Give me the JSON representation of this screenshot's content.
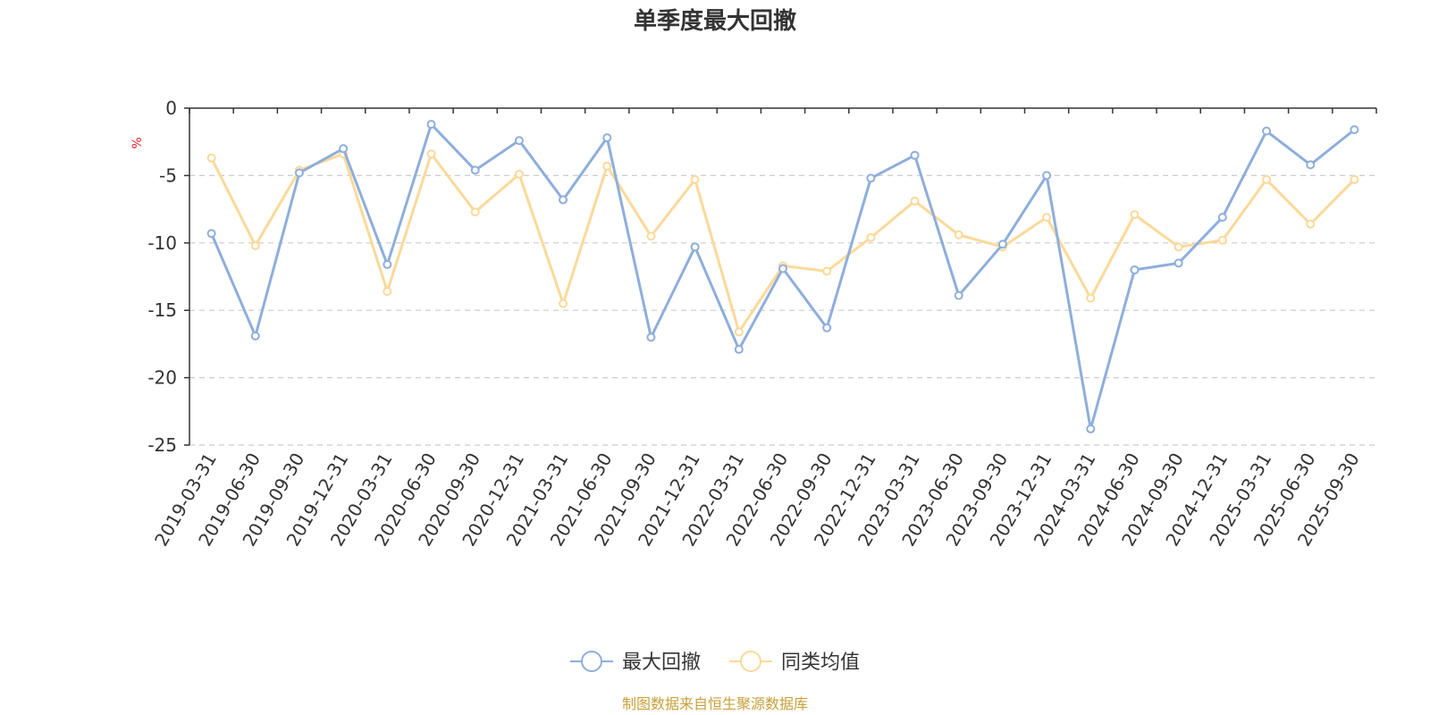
{
  "chart_data": {
    "type": "line",
    "title": "单季度最大回撤",
    "ylabel": "%",
    "ylabel_color": "#e02020",
    "ylim": [
      -25,
      0
    ],
    "yticks": [
      "0",
      "-5",
      "-10",
      "-15",
      "-20",
      "-25"
    ],
    "ytick_values": [
      0,
      -5,
      -10,
      -15,
      -20,
      -25
    ],
    "grid": true,
    "legend_position": "bottom-center",
    "categories": [
      "2019-03-31",
      "2019-06-30",
      "2019-09-30",
      "2019-12-31",
      "2020-03-31",
      "2020-06-30",
      "2020-09-30",
      "2020-12-31",
      "2021-03-31",
      "2021-06-30",
      "2021-09-30",
      "2021-12-31",
      "2022-03-31",
      "2022-06-30",
      "2022-09-30",
      "2022-12-31",
      "2023-03-31",
      "2023-06-30",
      "2023-09-30",
      "2023-12-31",
      "2024-03-31",
      "2024-06-30",
      "2024-09-30",
      "2024-12-31",
      "2025-03-31",
      "2025-06-30",
      "2025-09-30"
    ],
    "series": [
      {
        "name": "最大回撤",
        "color": "#8eaedb",
        "values": [
          -9.3,
          -16.9,
          -4.8,
          -3.0,
          -11.6,
          -1.2,
          -4.6,
          -2.4,
          -6.8,
          -2.2,
          -17.0,
          -10.3,
          -17.9,
          -11.9,
          -16.3,
          -5.2,
          -3.5,
          -13.9,
          -10.1,
          -5.0,
          -23.8,
          -12.0,
          -11.5,
          -8.1,
          -1.7,
          -4.2,
          -1.6
        ]
      },
      {
        "name": "同类均值",
        "color": "#fbd999",
        "values": [
          -3.7,
          -10.2,
          -4.6,
          -3.4,
          -13.6,
          -3.4,
          -7.7,
          -4.9,
          -14.5,
          -4.3,
          -9.5,
          -5.3,
          -16.6,
          -11.7,
          -12.1,
          -9.6,
          -6.9,
          -9.4,
          -10.3,
          -8.1,
          -14.1,
          -7.9,
          -10.3,
          -9.8,
          -5.3,
          -8.6,
          -5.3
        ]
      }
    ]
  },
  "footer": {
    "source": "制图数据来自恒生聚源数据库",
    "source_color": "#c8a03a"
  }
}
